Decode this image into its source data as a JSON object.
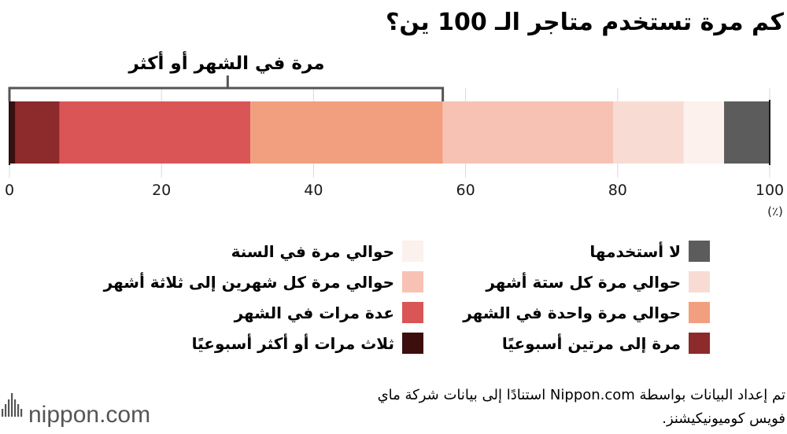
{
  "chart_data": {
    "type": "bar",
    "orientation": "horizontal-stacked",
    "title": "كم مرة تستخدم متاجر الـ 100 ين؟",
    "bracket_label": "مرة في الشهر أو أكثر",
    "bracket_range": [
      0,
      57
    ],
    "xlim": [
      0,
      100
    ],
    "xticks": [
      "0",
      "20",
      "40",
      "60",
      "80",
      "100"
    ],
    "unit_label": "(٪)",
    "grid": true,
    "series": [
      {
        "name": "ثلاث مرات أو أكثر أسبوعيًا",
        "value": 0.8,
        "color": "#3d0e0e"
      },
      {
        "name": "مرة إلى مرتين أسبوعيًا",
        "value": 5.8,
        "color": "#8c2a2c"
      },
      {
        "name": "عدة مرات في الشهر",
        "value": 25.1,
        "color": "#d95556"
      },
      {
        "name": "حوالي مرة واحدة في الشهر",
        "value": 25.3,
        "color": "#f29f80"
      },
      {
        "name": "حوالي مرة كل شهرين إلى ثلاثة أشهر",
        "value": 22.4,
        "color": "#f7c2b3"
      },
      {
        "name": "حوالي مرة كل ستة أشهر",
        "value": 9.3,
        "color": "#f8dcd3"
      },
      {
        "name": "حوالي مرة في السنة",
        "value": 5.3,
        "color": "#fcf1ed"
      },
      {
        "name": "لا أستخدمها",
        "value": 6.0,
        "color": "#5c5c5c"
      }
    ],
    "legend_order": [
      "لا أستخدمها",
      "حوالي مرة في السنة",
      "حوالي مرة كل ستة أشهر",
      "حوالي مرة كل شهرين إلى ثلاثة أشهر",
      "حوالي مرة واحدة في الشهر",
      "عدة مرات في الشهر",
      "مرة إلى مرتين أسبوعيًا",
      "ثلاث مرات أو أكثر أسبوعيًا"
    ]
  },
  "source": {
    "line1": "تم إعداد البيانات بواسطة Nippon.com استنادًا إلى بيانات شركة ماي",
    "line2": "فويس كوميونيكيشنز."
  },
  "logo": {
    "text": "nippon.com",
    "icon": "nippon-bars-icon",
    "color": "#555555"
  }
}
